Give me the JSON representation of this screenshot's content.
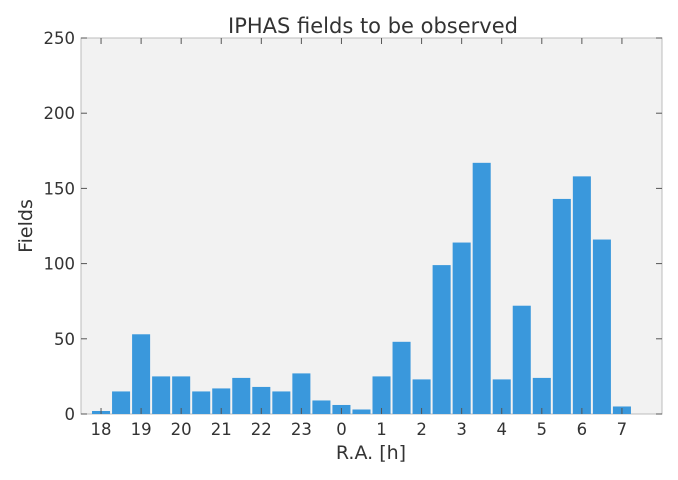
{
  "chart_data": {
    "type": "bar",
    "title": "IPHAS fields to be observed",
    "xlabel": "R.A. [h]",
    "ylabel": "Fields",
    "xlim": [
      17.5,
      8.0
    ],
    "ylim": [
      0,
      250
    ],
    "grid": false,
    "x_ticks": [
      {
        "label": "18",
        "value": 18
      },
      {
        "label": "19",
        "value": 19
      },
      {
        "label": "20",
        "value": 20
      },
      {
        "label": "21",
        "value": 21
      },
      {
        "label": "22",
        "value": 22
      },
      {
        "label": "23",
        "value": 23
      },
      {
        "label": "0",
        "value": 0
      },
      {
        "label": "1",
        "value": 1
      },
      {
        "label": "2",
        "value": 2
      },
      {
        "label": "3",
        "value": 3
      },
      {
        "label": "4",
        "value": 4
      },
      {
        "label": "5",
        "value": 5
      },
      {
        "label": "6",
        "value": 6
      },
      {
        "label": "7",
        "value": 7
      }
    ],
    "y_ticks": [
      0,
      50,
      100,
      150,
      200,
      250
    ],
    "bin_width_h": 0.5,
    "bins": [
      {
        "ra_start": 17.75,
        "value": 2
      },
      {
        "ra_start": 18.25,
        "value": 15
      },
      {
        "ra_start": 18.75,
        "value": 53
      },
      {
        "ra_start": 19.25,
        "value": 25
      },
      {
        "ra_start": 19.75,
        "value": 25
      },
      {
        "ra_start": 20.25,
        "value": 15
      },
      {
        "ra_start": 20.75,
        "value": 17
      },
      {
        "ra_start": 21.25,
        "value": 24
      },
      {
        "ra_start": 21.75,
        "value": 18
      },
      {
        "ra_start": 22.25,
        "value": 15
      },
      {
        "ra_start": 22.75,
        "value": 27
      },
      {
        "ra_start": 23.25,
        "value": 9
      },
      {
        "ra_start": 23.75,
        "value": 6
      },
      {
        "ra_start": 0.25,
        "value": 3
      },
      {
        "ra_start": 0.75,
        "value": 25
      },
      {
        "ra_start": 1.25,
        "value": 48
      },
      {
        "ra_start": 1.75,
        "value": 23
      },
      {
        "ra_start": 2.25,
        "value": 99
      },
      {
        "ra_start": 2.75,
        "value": 114
      },
      {
        "ra_start": 3.25,
        "value": 167
      },
      {
        "ra_start": 3.75,
        "value": 23
      },
      {
        "ra_start": 4.25,
        "value": 72
      },
      {
        "ra_start": 4.75,
        "value": 24
      },
      {
        "ra_start": 5.25,
        "value": 143
      },
      {
        "ra_start": 5.75,
        "value": 158
      },
      {
        "ra_start": 6.25,
        "value": 116
      },
      {
        "ra_start": 6.75,
        "value": 5
      }
    ],
    "colors": {
      "bar": "#3a98dc",
      "plot_background": "#f2f2f2",
      "frame": "#bcbcbc",
      "text": "#333333"
    }
  }
}
